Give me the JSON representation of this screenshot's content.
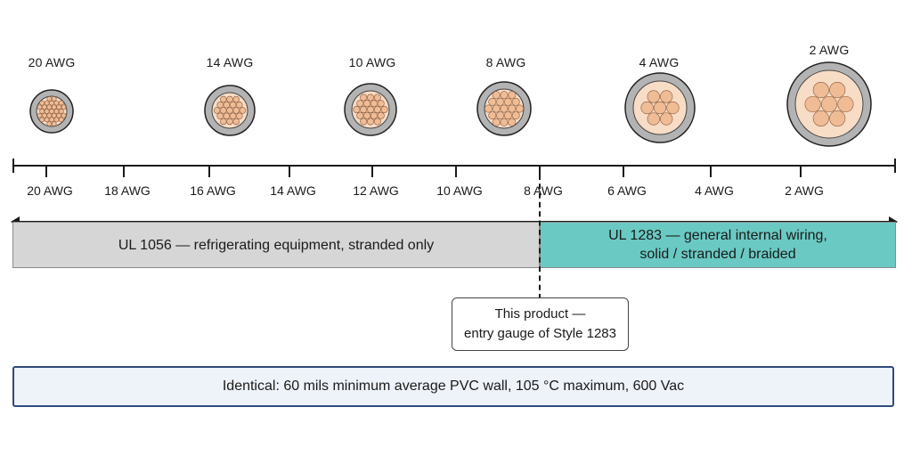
{
  "wire_labels": [
    "20 AWG",
    "14 AWG",
    "10 AWG",
    "8 AWG",
    "4 AWG",
    "2 AWG"
  ],
  "axis_labels": [
    "20 AWG",
    "18 AWG",
    "16 AWG",
    "14 AWG",
    "12 AWG",
    "10 AWG",
    "8 AWG",
    "6 AWG",
    "4 AWG",
    "2 AWG"
  ],
  "bands": {
    "ul1056": {
      "line1": "UL 1056 — refrigerating equipment, stranded only"
    },
    "ul1283": {
      "line1": "UL 1283 — general internal wiring,",
      "line2": "solid / stranded / braided"
    }
  },
  "callout": {
    "line1": "This product —",
    "line2": "entry gauge of Style 1283"
  },
  "footer": "Identical: 60 mils minimum average PVC wall, 105 °C maximum, 600 Vac",
  "colors": {
    "ul1056": "#d6d6d6",
    "ul1283": "#6ac9c3",
    "copper": "#efbc96",
    "insulation": "#b3b3b3",
    "footer_border": "#2f4a7a"
  }
}
